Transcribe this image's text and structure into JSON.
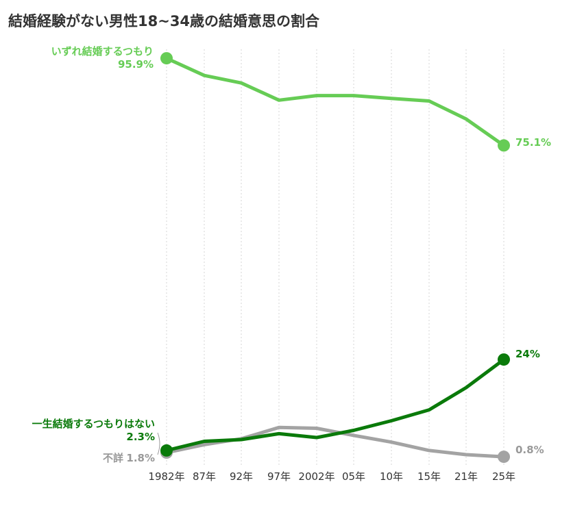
{
  "chart_data": {
    "type": "line",
    "title": "結婚経験がない男性18~34歳の結婚意思の割合",
    "xlabel": "",
    "ylabel": "",
    "ylim": [
      0,
      100
    ],
    "grid": "vertical dotted",
    "categories": [
      "1982年",
      "87年",
      "92年",
      "97年",
      "2002年",
      "05年",
      "10年",
      "15年",
      "21年",
      "25年"
    ],
    "series": [
      {
        "name": "いずれ結婚するつもり",
        "color": "#66cc55",
        "values": [
          95.9,
          91.8,
          90.0,
          85.9,
          87.0,
          87.0,
          86.3,
          85.7,
          81.4,
          75.1
        ]
      },
      {
        "name": "一生結婚するつもりはない",
        "color": "#0a7a0a",
        "values": [
          2.3,
          4.5,
          4.9,
          6.3,
          5.4,
          7.1,
          9.4,
          12.0,
          17.3,
          24.0
        ]
      },
      {
        "name": "不詳",
        "color": "#a3a3a3",
        "values": [
          1.8,
          3.7,
          5.1,
          7.8,
          7.6,
          5.9,
          4.3,
          2.3,
          1.3,
          0.8
        ]
      }
    ],
    "annotations": {
      "start_label_1": "いずれ結婚するつもり",
      "start_value_1": "95.9%",
      "end_value_1": "75.1%",
      "start_label_2": "一生結婚するつもりはない",
      "start_value_2": "2.3%",
      "end_value_2": "24%",
      "start_label_3": "不詳",
      "start_value_3": "1.8%",
      "end_value_3": "0.8%"
    }
  }
}
